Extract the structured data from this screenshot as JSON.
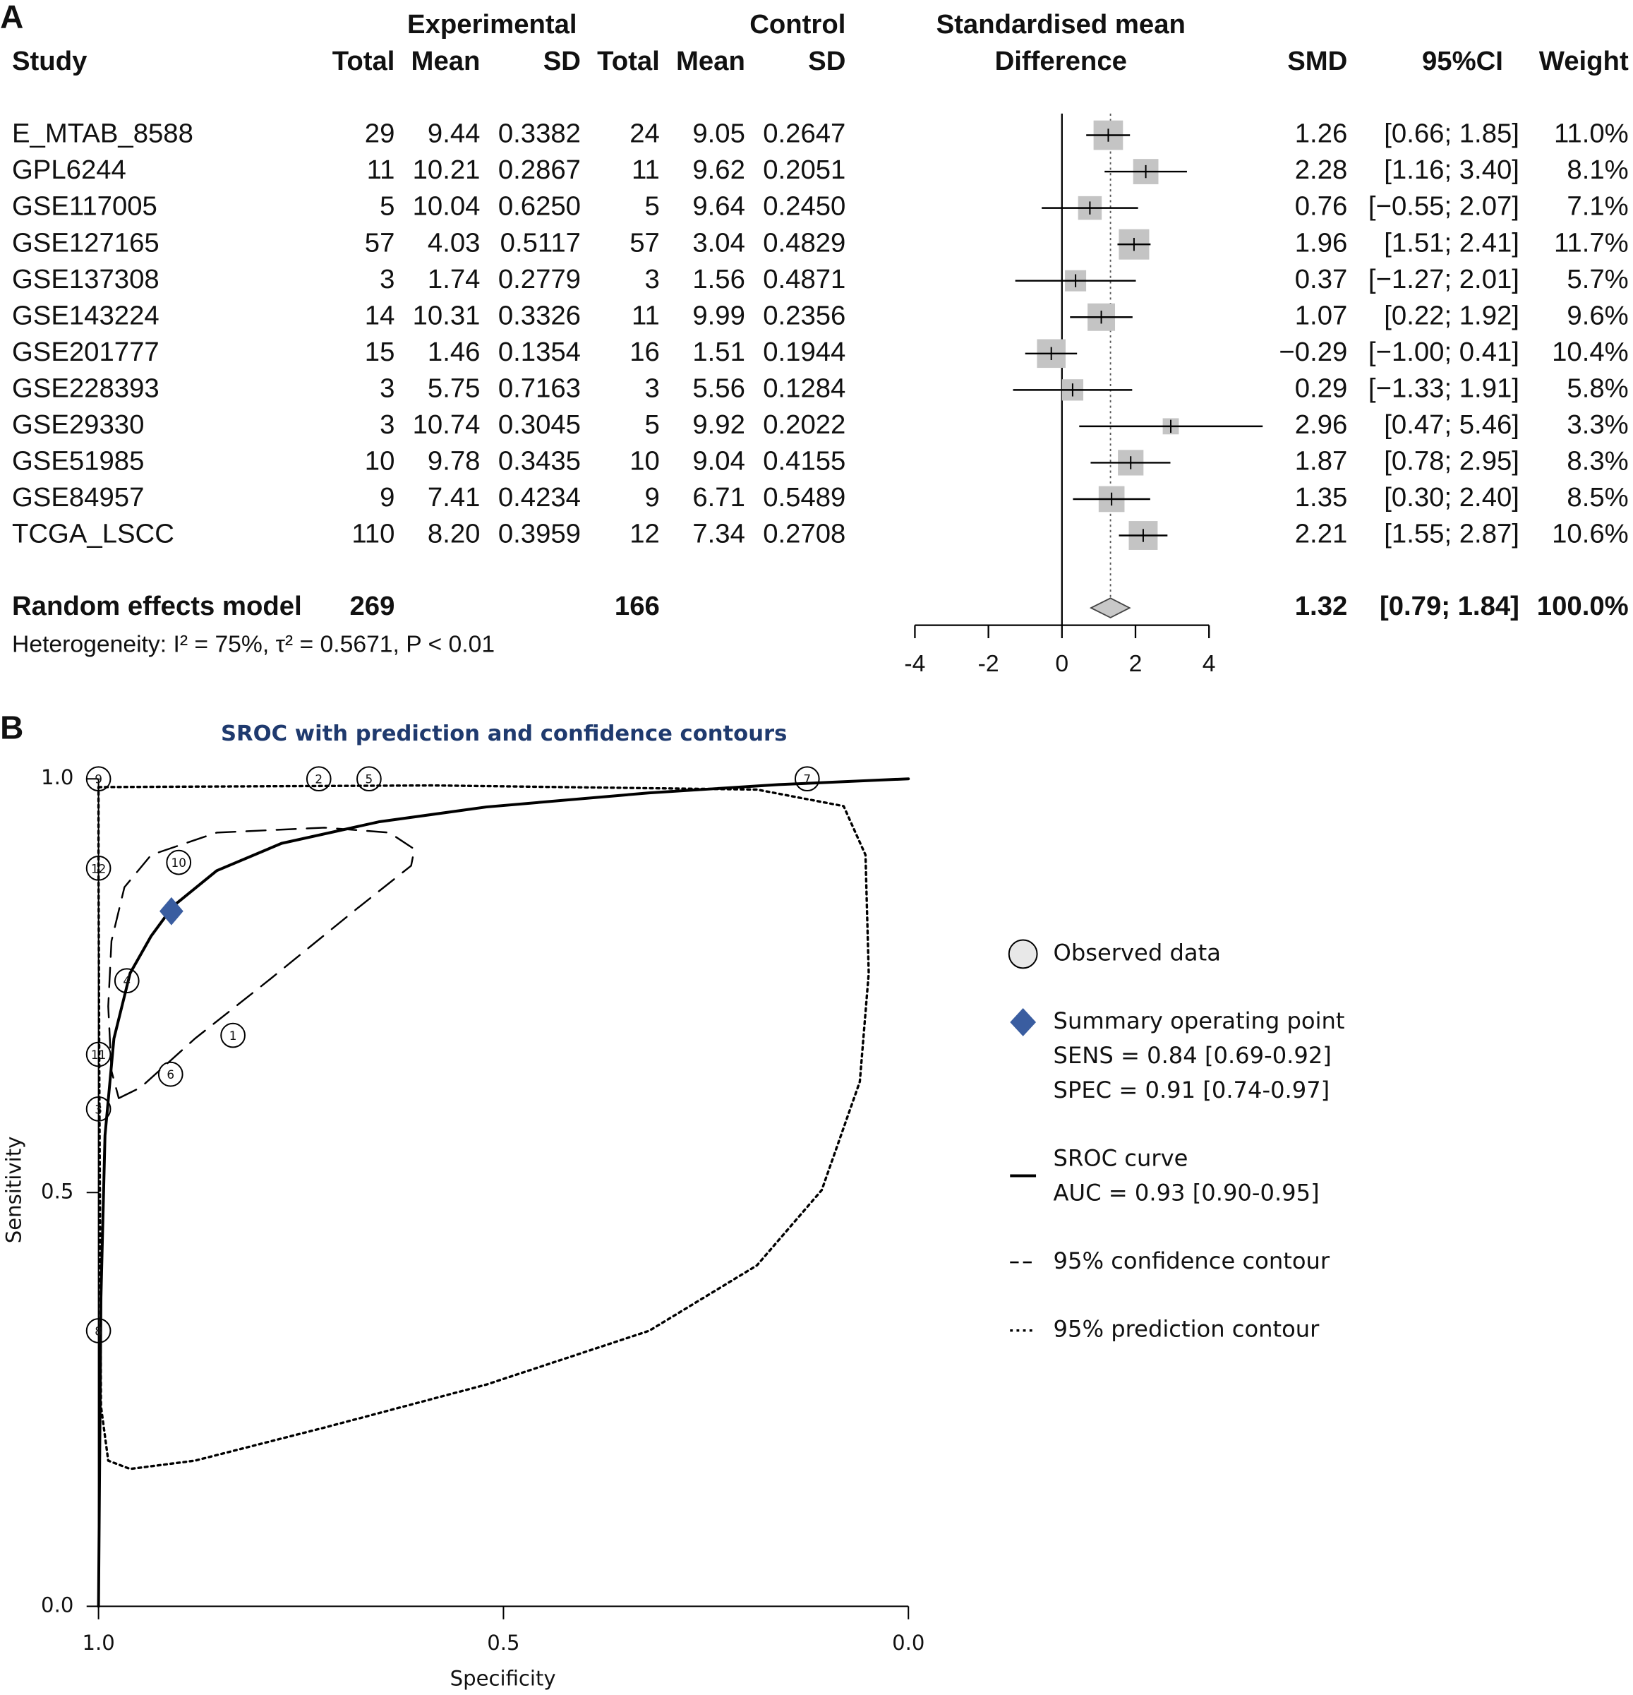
{
  "chart_data": [
    {
      "type": "forest",
      "panel_label": "A",
      "headers": {
        "study": "Study",
        "experimental": "Experimental",
        "control": "Control",
        "effect_line1": "Standardised mean",
        "effect_line2": "Difference",
        "total": "Total",
        "mean": "Mean",
        "sd": "SD",
        "smd": "SMD",
        "ci": "95%CI",
        "weight": "Weight"
      },
      "studies": [
        "E_MTAB_8588",
        "GPL6244",
        "GSE117005",
        "GSE127165",
        "GSE137308",
        "GSE143224",
        "GSE201777",
        "GSE228393",
        "GSE29330",
        "GSE51985",
        "GSE84957",
        "TCGA_LSCC"
      ],
      "experimental": [
        [
          "29",
          "9.44",
          "0.3382"
        ],
        [
          "11",
          "10.21",
          "0.2867"
        ],
        [
          "5",
          "10.04",
          "0.6250"
        ],
        [
          "57",
          "4.03",
          "0.5117"
        ],
        [
          "3",
          "1.74",
          "0.2779"
        ],
        [
          "14",
          "10.31",
          "0.3326"
        ],
        [
          "15",
          "1.46",
          "0.1354"
        ],
        [
          "3",
          "5.75",
          "0.7163"
        ],
        [
          "3",
          "10.74",
          "0.3045"
        ],
        [
          "10",
          "9.78",
          "0.3435"
        ],
        [
          "9",
          "7.41",
          "0.4234"
        ],
        [
          "110",
          "8.20",
          "0.3959"
        ]
      ],
      "control": [
        [
          "24",
          "9.05",
          "0.2647"
        ],
        [
          "11",
          "9.62",
          "0.2051"
        ],
        [
          "5",
          "9.64",
          "0.2450"
        ],
        [
          "57",
          "3.04",
          "0.4829"
        ],
        [
          "3",
          "1.56",
          "0.4871"
        ],
        [
          "11",
          "9.99",
          "0.2356"
        ],
        [
          "16",
          "1.51",
          "0.1944"
        ],
        [
          "3",
          "5.56",
          "0.1284"
        ],
        [
          "5",
          "9.92",
          "0.2022"
        ],
        [
          "10",
          "9.04",
          "0.4155"
        ],
        [
          "9",
          "6.71",
          "0.5489"
        ],
        [
          "12",
          "7.34",
          "0.2708"
        ]
      ],
      "values": [
        1.26,
        2.28,
        0.76,
        1.96,
        0.37,
        1.07,
        -0.29,
        0.29,
        2.96,
        1.87,
        1.35,
        2.21
      ],
      "value_labels": [
        "1.26",
        "2.28",
        "0.76",
        "1.96",
        "0.37",
        "1.07",
        "−0.29",
        "0.29",
        "2.96",
        "1.87",
        "1.35",
        "2.21"
      ],
      "ci_lower": [
        0.66,
        1.16,
        -0.55,
        1.51,
        -1.27,
        0.22,
        -1.0,
        -1.33,
        0.47,
        0.78,
        0.3,
        1.55
      ],
      "ci_upper": [
        1.85,
        3.4,
        2.07,
        2.41,
        2.01,
        1.92,
        0.41,
        1.91,
        5.46,
        2.95,
        2.4,
        2.87
      ],
      "ci_labels": [
        "[0.66; 1.85]",
        "[1.16; 3.40]",
        "[−0.55; 2.07]",
        "[1.51; 2.41]",
        "[−1.27; 2.01]",
        "[0.22; 1.92]",
        "[−1.00; 0.41]",
        "[−1.33; 1.91]",
        "[0.47; 5.46]",
        "[0.78; 2.95]",
        "[0.30; 2.40]",
        "[1.55; 2.87]"
      ],
      "weights": [
        11.0,
        8.1,
        7.1,
        11.7,
        5.7,
        9.6,
        10.4,
        5.8,
        3.3,
        8.3,
        8.5,
        10.6
      ],
      "weight_labels": [
        "11.0%",
        "8.1%",
        "7.1%",
        "11.7%",
        "5.7%",
        "9.6%",
        "10.4%",
        "5.8%",
        "3.3%",
        "8.3%",
        "8.5%",
        "10.6%"
      ],
      "summary": {
        "name": "Random effects model",
        "experimental_total": "269",
        "control_total": "166",
        "value": 1.32,
        "ci_lower": 0.79,
        "ci_upper": 1.84,
        "ci_label": "[0.79; 1.84]",
        "weight": 100.0,
        "weight_label": "100.0%"
      },
      "heterogeneity": "Heterogeneity: I² = 75%, τ² = 0.5671, P < 0.01",
      "xlim": [
        -4,
        4
      ],
      "xticks": [
        -4,
        -2,
        0,
        2,
        4
      ],
      "color": "#c4c4c4"
    },
    {
      "type": "sroc",
      "panel_label": "B",
      "title": "SROC with prediction and confidence contours",
      "xlabel": "Specificity",
      "ylabel": "Sensitivity",
      "xlim": [
        1,
        0
      ],
      "ylim": [
        0,
        1
      ],
      "xticks": [
        {
          "value": 1,
          "label": "1.0"
        },
        {
          "value": 0.5,
          "label": "0.5"
        },
        {
          "value": 0,
          "label": "0.0"
        }
      ],
      "yticks": [
        {
          "value": 0,
          "label": "0.0"
        },
        {
          "value": 0.5,
          "label": "0.5"
        },
        {
          "value": 1,
          "label": "1.0"
        }
      ],
      "series": [
        {
          "name": "Observed data",
          "kind": "points",
          "color": "#e8e8e8",
          "labels": [
            "1",
            "2",
            "3",
            "4",
            "5",
            "6",
            "7",
            "8",
            "9",
            "10",
            "11",
            "12"
          ],
          "x": [
            0.834,
            0.728,
            1.0,
            0.965,
            0.666,
            0.911,
            0.125,
            1.0,
            1.0,
            0.901,
            1.0,
            1.0
          ],
          "values": [
            0.69,
            1.0,
            0.601,
            0.756,
            1.0,
            0.643,
            1.0,
            0.333,
            1.0,
            0.899,
            0.667,
            0.892
          ]
        },
        {
          "name": "Summary operating point",
          "kind": "diamond",
          "color": "#3a5da0",
          "details": [
            "SENS = 0.84 [0.69-0.92]",
            "SPEC = 0.91 [0.74-0.97]"
          ],
          "x": [
            0.91
          ],
          "values": [
            0.84
          ]
        },
        {
          "name": "SROC curve",
          "kind": "line",
          "color": "#000000",
          "dash": "solid",
          "details": [
            "AUC = 0.93 [0.90-0.95]"
          ],
          "x": [
            1.0,
            0.997,
            0.992,
            0.981,
            0.961,
            0.935,
            0.908,
            0.854,
            0.774,
            0.654,
            0.521,
            0.32,
            0.16,
            0.0
          ],
          "values": [
            0.0,
            0.373,
            0.569,
            0.686,
            0.765,
            0.81,
            0.846,
            0.889,
            0.922,
            0.948,
            0.966,
            0.983,
            0.993,
            1.0
          ]
        },
        {
          "name": "95% confidence contour",
          "kind": "line",
          "color": "#000000",
          "dash": "dashed",
          "x": [
            0.975,
            0.948,
            0.881,
            0.788,
            0.681,
            0.614,
            0.61,
            0.641,
            0.721,
            0.854,
            0.935,
            0.968,
            0.984,
            0.988,
            0.984,
            0.975
          ],
          "values": [
            0.614,
            0.627,
            0.686,
            0.758,
            0.843,
            0.895,
            0.915,
            0.935,
            0.941,
            0.935,
            0.908,
            0.869,
            0.804,
            0.725,
            0.647,
            0.614
          ]
        },
        {
          "name": "95% prediction contour",
          "kind": "line",
          "color": "#000000",
          "dash": "dotted",
          "x": [
            1.0,
            0.587,
            0.187,
            0.08,
            0.053,
            0.049,
            0.06,
            0.107,
            0.187,
            0.32,
            0.521,
            0.721,
            0.881,
            0.961,
            0.988,
            0.997,
            0.999,
            1.0,
            1.0
          ],
          "values": [
            0.99,
            0.992,
            0.987,
            0.967,
            0.908,
            0.765,
            0.634,
            0.503,
            0.412,
            0.333,
            0.268,
            0.216,
            0.176,
            0.166,
            0.176,
            0.242,
            0.634,
            0.895,
            0.99
          ]
        }
      ]
    }
  ]
}
